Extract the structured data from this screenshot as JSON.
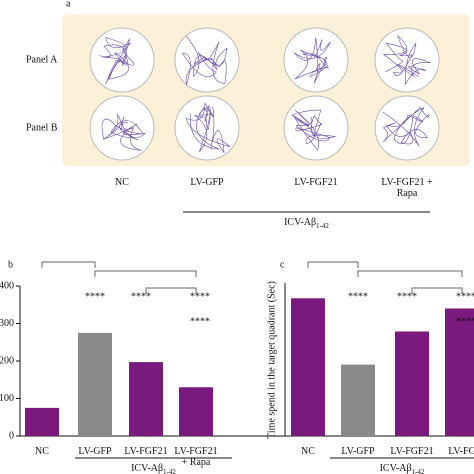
{
  "panel_a": {
    "label": "a",
    "rows": [
      "Panel A",
      "Panel B"
    ],
    "columns": [
      "NC",
      "LV-GFP",
      "LV-FGF21",
      "LV-FGF21 + Rapa"
    ],
    "group": {
      "text": "ICV-Aβ",
      "subscript": "1-42"
    }
  },
  "chart_data": [
    {
      "type": "bar",
      "panel_label": "b",
      "categories": [
        "NC",
        "LV-GFP",
        "LV-FGF21",
        "LV-FGF21 + Rapa"
      ],
      "values": [
        75,
        275,
        197,
        130
      ],
      "colors": [
        "#7b1a7e",
        "#8a8a8a",
        "#7b1a7e",
        "#7b1a7e"
      ],
      "ylim": [
        0,
        400
      ],
      "yticks": [
        0,
        100,
        200,
        300,
        400
      ],
      "significance": [
        "****",
        "****",
        "****",
        "****"
      ],
      "group": {
        "text": "ICV-Aβ",
        "subscript": "1-42"
      }
    },
    {
      "type": "bar",
      "panel_label": "c",
      "ylabel": "Time spend in the target quadrant (Sec)",
      "categories": [
        "NC",
        "LV-GFP",
        "LV-FGF21",
        "LV-FG"
      ],
      "values": [
        27,
        14,
        20.5,
        25
      ],
      "colors": [
        "#7b1a7e",
        "#8a8a8a",
        "#7b1a7e",
        "#7b1a7e"
      ],
      "ylim": [
        0,
        30
      ],
      "significance": [
        "****",
        "****",
        "****",
        "****"
      ],
      "group": {
        "text": "ICV-Aβ",
        "subscript": "1-42"
      }
    }
  ]
}
